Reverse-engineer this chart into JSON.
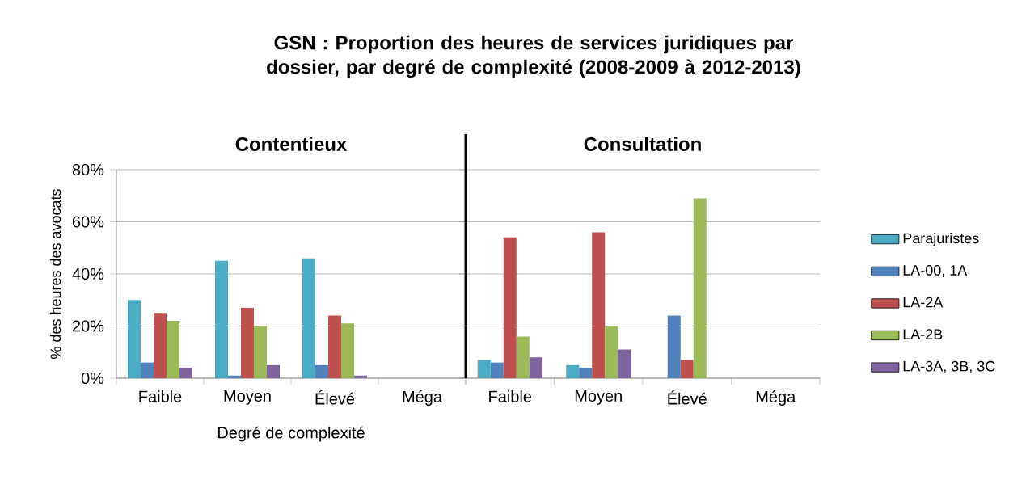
{
  "chart_data": [
    {
      "type": "bar",
      "title": "GSN : Proportion des heures de services juridiques par dossier, par degré de complexité (2008-2009 à 2012-2013)",
      "subtitle": "Contentieux",
      "xlabel": "Degré de complexité",
      "ylabel": "% des heures des avocats",
      "categories": [
        "Faible",
        "Moyen",
        "Élevé",
        "Méga"
      ],
      "series": [
        {
          "color": "#4bacc6",
          "values": [
            30,
            45,
            46,
            null
          ]
        },
        {
          "color": "#4f81bd",
          "values": [
            6,
            1,
            5,
            null
          ]
        },
        {
          "color": "#c0504d",
          "values": [
            25,
            27,
            24,
            null
          ]
        },
        {
          "color": "#9bbb59",
          "values": [
            22,
            20,
            21,
            null
          ]
        },
        {
          "color": "#8064a2",
          "values": [
            4,
            5,
            1,
            null
          ]
        }
      ],
      "ylim": [
        0,
        80
      ],
      "yticks": [
        {
          "value": 0,
          "label": "0%"
        },
        {
          "value": 20,
          "label": "20%"
        },
        {
          "value": 40,
          "label": "40%"
        },
        {
          "value": 60,
          "label": "60%"
        },
        {
          "value": 80,
          "label": "80%"
        }
      ],
      "grid": "y"
    },
    {
      "type": "bar",
      "subtitle": "Consultation",
      "categories": [
        "Faible",
        "Moyen",
        "Élevé",
        "Méga"
      ],
      "series": [
        {
          "name": "Parajuristes",
          "color": "#4bacc6",
          "values": [
            7,
            5,
            null,
            null
          ]
        },
        {
          "name": "LA-00, 1A",
          "color": "#4f81bd",
          "values": [
            6,
            4,
            24,
            null
          ]
        },
        {
          "name": "LA-2A",
          "color": "#c0504d",
          "values": [
            54,
            56,
            7,
            null
          ]
        },
        {
          "name": "LA-2B",
          "color": "#9bbb59",
          "values": [
            16,
            20,
            69,
            null
          ]
        },
        {
          "name": "LA-3A, 3B, 3C",
          "color": "#8064a2",
          "values": [
            8,
            11,
            null,
            null
          ]
        }
      ],
      "ylim": [
        0,
        80
      ],
      "yticks": [
        0,
        20,
        40,
        60,
        80
      ],
      "grid": "y",
      "legend": "right",
      "tick_labels": "x"
    }
  ]
}
